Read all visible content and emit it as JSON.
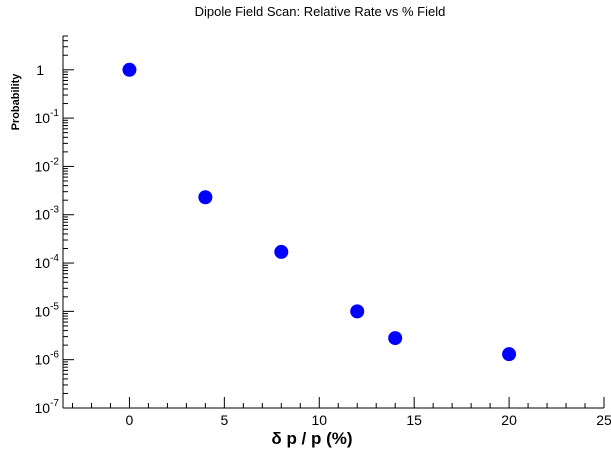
{
  "chart_data": {
    "type": "scatter",
    "title": "Dipole Field Scan:  Relative Rate vs % Field",
    "xlabel": "δ p / p   (%)",
    "ylabel": "Probability",
    "xlim": [
      -3.5,
      25
    ],
    "ylim": [
      1e-07,
      5
    ],
    "yscale": "log",
    "grid": false,
    "x_ticks": [
      {
        "value": 0,
        "label": "0"
      },
      {
        "value": 5,
        "label": "5"
      },
      {
        "value": 10,
        "label": "10"
      },
      {
        "value": 15,
        "label": "15"
      },
      {
        "value": 20,
        "label": "20"
      },
      {
        "value": 25,
        "label": "25"
      }
    ],
    "y_ticks": [
      {
        "value": 1,
        "base": "1",
        "exp": ""
      },
      {
        "value": 0.1,
        "base": "10",
        "exp": "-1"
      },
      {
        "value": 0.01,
        "base": "10",
        "exp": "-2"
      },
      {
        "value": 0.001,
        "base": "10",
        "exp": "-3"
      },
      {
        "value": 0.0001,
        "base": "10",
        "exp": "-4"
      },
      {
        "value": 1e-05,
        "base": "10",
        "exp": "-5"
      },
      {
        "value": 1e-06,
        "base": "10",
        "exp": "-6"
      },
      {
        "value": 1e-07,
        "base": "10",
        "exp": "-7"
      }
    ],
    "series": [
      {
        "color": "#0000ff",
        "points": [
          {
            "x": 0,
            "y": 1.0
          },
          {
            "x": 4,
            "y": 0.0023
          },
          {
            "x": 8,
            "y": 0.00017
          },
          {
            "x": 12,
            "y": 1e-05
          },
          {
            "x": 14,
            "y": 2.8e-06
          },
          {
            "x": 20,
            "y": 1.3e-06
          }
        ]
      }
    ]
  }
}
